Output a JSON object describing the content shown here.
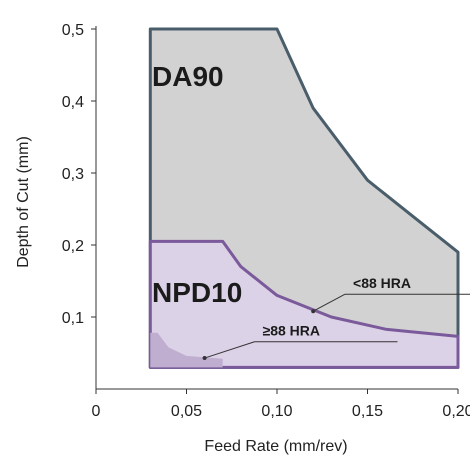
{
  "chart_data": {
    "type": "area",
    "xlabel": "Feed Rate (mm/rev)",
    "ylabel": "Depth of Cut (mm)",
    "xlim": [
      0,
      0.2
    ],
    "ylim": [
      0,
      0.5
    ],
    "x_ticks": [
      "0",
      "0,05",
      "0,10",
      "0,15",
      "0,20"
    ],
    "y_ticks": [
      "0,1",
      "0,2",
      "0,3",
      "0,4",
      "0,5"
    ],
    "grid": false,
    "regions": [
      {
        "name": "DA90",
        "fill": "#d2d2d2",
        "stroke": "#4a5d6b",
        "points": [
          [
            0.03,
            0.03
          ],
          [
            0.03,
            0.5
          ],
          [
            0.1,
            0.5
          ],
          [
            0.12,
            0.39
          ],
          [
            0.15,
            0.29
          ],
          [
            0.18,
            0.23
          ],
          [
            0.2,
            0.19
          ],
          [
            0.2,
            0.03
          ]
        ]
      },
      {
        "name": "NPD10",
        "fill": "#dcd2e8",
        "stroke": "#7b5a9b",
        "points": [
          [
            0.03,
            0.03
          ],
          [
            0.03,
            0.205
          ],
          [
            0.07,
            0.205
          ],
          [
            0.08,
            0.17
          ],
          [
            0.1,
            0.13
          ],
          [
            0.13,
            0.1
          ],
          [
            0.16,
            0.083
          ],
          [
            0.2,
            0.073
          ],
          [
            0.2,
            0.03
          ]
        ]
      },
      {
        "name": "≥88 HRA",
        "fill": "#bfaed0",
        "stroke": "none",
        "points": [
          [
            0.03,
            0.03
          ],
          [
            0.03,
            0.078
          ],
          [
            0.034,
            0.078
          ],
          [
            0.04,
            0.058
          ],
          [
            0.05,
            0.046
          ],
          [
            0.07,
            0.042
          ],
          [
            0.07,
            0.03
          ]
        ]
      }
    ],
    "annotations": [
      {
        "text": "<88 HRA",
        "x": 0.142,
        "y": 0.14,
        "target_x": 0.12,
        "target_y": 0.108
      },
      {
        "text": "≥88 HRA",
        "x": 0.092,
        "y": 0.074,
        "target_x": 0.06,
        "target_y": 0.043
      }
    ],
    "region_labels": [
      "DA90",
      "NPD10"
    ]
  },
  "colors": {
    "da90_fill": "#d2d2d2",
    "da90_stroke": "#4a5d6b",
    "npd10_fill": "#dcd2e8",
    "npd10_stroke": "#7b5a9b",
    "hra88_fill": "#bfaed0",
    "axis": "#333333"
  }
}
